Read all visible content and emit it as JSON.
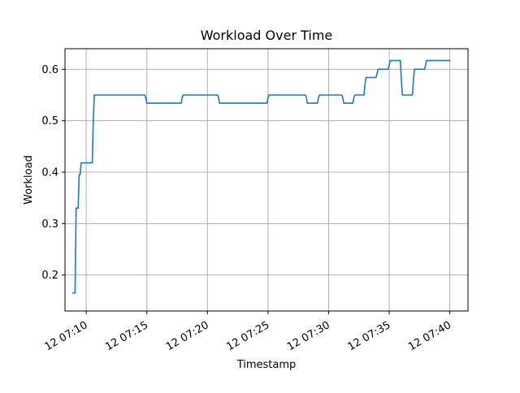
{
  "chart_data": {
    "type": "line",
    "title": "Workload Over Time",
    "xlabel": "Timestamp",
    "ylabel": "Workload",
    "grid": true,
    "xlim": [
      "12 07:08:15",
      "12 07:41:30"
    ],
    "ylim": [
      0.13,
      0.64
    ],
    "x_ticks": [
      {
        "value": "12 07:10",
        "label": "12 07:10"
      },
      {
        "value": "12 07:15",
        "label": "12 07:15"
      },
      {
        "value": "12 07:20",
        "label": "12 07:20"
      },
      {
        "value": "12 07:25",
        "label": "12 07:25"
      },
      {
        "value": "12 07:30",
        "label": "12 07:30"
      },
      {
        "value": "12 07:35",
        "label": "12 07:35"
      },
      {
        "value": "12 07:40",
        "label": "12 07:40"
      }
    ],
    "y_ticks": [
      {
        "value": 0.2,
        "label": "0.2"
      },
      {
        "value": 0.3,
        "label": "0.3"
      },
      {
        "value": 0.4,
        "label": "0.4"
      },
      {
        "value": 0.5,
        "label": "0.5"
      },
      {
        "value": 0.6,
        "label": "0.6"
      }
    ],
    "series": [
      {
        "color": "#1f77b4",
        "x": [
          "12 07:08:55",
          "12 07:09:05",
          "12 07:09:10",
          "12 07:09:20",
          "12 07:09:25",
          "12 07:09:30",
          "12 07:09:35",
          "12 07:09:40",
          "12 07:09:45",
          "12 07:10:30",
          "12 07:10:35",
          "12 07:10:40",
          "12 07:14:50",
          "12 07:14:55",
          "12 07:15:00",
          "12 07:17:50",
          "12 07:17:55",
          "12 07:18:00",
          "12 07:20:50",
          "12 07:20:55",
          "12 07:21:00",
          "12 07:24:55",
          "12 07:25:00",
          "12 07:25:05",
          "12 07:28:05",
          "12 07:28:10",
          "12 07:28:15",
          "12 07:29:05",
          "12 07:29:10",
          "12 07:29:15",
          "12 07:31:05",
          "12 07:31:10",
          "12 07:31:15",
          "12 07:32:00",
          "12 07:32:05",
          "12 07:32:10",
          "12 07:32:55",
          "12 07:33:00",
          "12 07:33:05",
          "12 07:33:55",
          "12 07:34:00",
          "12 07:34:05",
          "12 07:34:55",
          "12 07:35:00",
          "12 07:35:05",
          "12 07:35:55",
          "12 07:36:00",
          "12 07:36:05",
          "12 07:36:55",
          "12 07:37:00",
          "12 07:37:05",
          "12 07:37:55",
          "12 07:38:00",
          "12 07:38:05",
          "12 07:40:00"
        ],
        "y": [
          0.165,
          0.165,
          0.33,
          0.33,
          0.395,
          0.395,
          0.418,
          0.418,
          0.418,
          0.418,
          0.5,
          0.55,
          0.55,
          0.545,
          0.534,
          0.534,
          0.545,
          0.55,
          0.55,
          0.545,
          0.534,
          0.534,
          0.545,
          0.55,
          0.55,
          0.545,
          0.534,
          0.534,
          0.545,
          0.55,
          0.55,
          0.545,
          0.534,
          0.534,
          0.545,
          0.55,
          0.55,
          0.57,
          0.584,
          0.584,
          0.592,
          0.6,
          0.6,
          0.608,
          0.617,
          0.617,
          0.58,
          0.55,
          0.55,
          0.58,
          0.6,
          0.6,
          0.608,
          0.617,
          0.617
        ]
      }
    ]
  }
}
